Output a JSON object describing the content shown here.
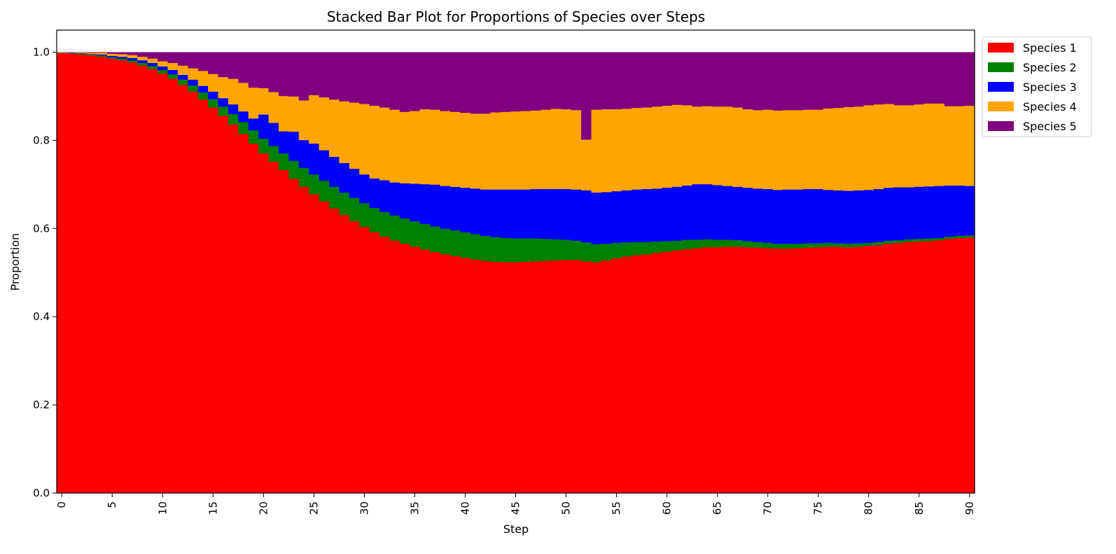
{
  "chart_data": {
    "type": "bar",
    "stacked": true,
    "title": "Stacked Bar Plot for Proportions of Species over Steps",
    "xlabel": "Step",
    "ylabel": "Proportion",
    "xlim": [
      -0.5,
      90.5
    ],
    "ylim": [
      0,
      1.05
    ],
    "x_ticks": [
      0,
      5,
      10,
      15,
      20,
      25,
      30,
      35,
      40,
      45,
      50,
      55,
      60,
      65,
      70,
      75,
      80,
      85,
      90
    ],
    "y_ticks": [
      0.0,
      0.2,
      0.4,
      0.6,
      0.8,
      1.0
    ],
    "y_tick_labels": [
      "0.0",
      "0.2",
      "0.4",
      "0.6",
      "0.8",
      "1.0"
    ],
    "grid": false,
    "legend_position": "outside-top-right",
    "x": [
      0,
      1,
      2,
      3,
      4,
      5,
      6,
      7,
      8,
      9,
      10,
      11,
      12,
      13,
      14,
      15,
      16,
      17,
      18,
      19,
      20,
      21,
      22,
      23,
      24,
      25,
      26,
      27,
      28,
      29,
      30,
      31,
      32,
      33,
      34,
      35,
      36,
      37,
      38,
      39,
      40,
      41,
      42,
      43,
      44,
      45,
      46,
      47,
      48,
      49,
      50,
      51,
      52,
      53,
      54,
      55,
      56,
      57,
      58,
      59,
      60,
      61,
      62,
      63,
      64,
      65,
      66,
      67,
      68,
      69,
      70,
      71,
      72,
      73,
      74,
      75,
      76,
      77,
      78,
      79,
      80,
      81,
      82,
      83,
      84,
      85,
      86,
      87,
      88,
      89,
      90
    ],
    "series": [
      {
        "name": "Species 1",
        "color": "#ff0000",
        "values": [
          0.998,
          0.997,
          0.995,
          0.993,
          0.99,
          0.986,
          0.982,
          0.977,
          0.97,
          0.962,
          0.952,
          0.94,
          0.926,
          0.911,
          0.893,
          0.875,
          0.856,
          0.836,
          0.815,
          0.793,
          0.771,
          0.752,
          0.733,
          0.713,
          0.695,
          0.678,
          0.662,
          0.646,
          0.631,
          0.617,
          0.604,
          0.592,
          0.582,
          0.573,
          0.566,
          0.559,
          0.553,
          0.547,
          0.542,
          0.538,
          0.534,
          0.53,
          0.527,
          0.525,
          0.524,
          0.524,
          0.525,
          0.526,
          0.527,
          0.528,
          0.529,
          0.529,
          0.526,
          0.524,
          0.528,
          0.533,
          0.537,
          0.54,
          0.542,
          0.545,
          0.548,
          0.551,
          0.554,
          0.556,
          0.558,
          0.558,
          0.559,
          0.559,
          0.558,
          0.557,
          0.556,
          0.555,
          0.555,
          0.556,
          0.557,
          0.558,
          0.559,
          0.559,
          0.558,
          0.559,
          0.561,
          0.563,
          0.566,
          0.568,
          0.57,
          0.571,
          0.572,
          0.574,
          0.577,
          0.579,
          0.58
        ]
      },
      {
        "name": "Species 2",
        "color": "#008000",
        "values": [
          0.001,
          0.001,
          0.002,
          0.002,
          0.003,
          0.003,
          0.004,
          0.005,
          0.006,
          0.007,
          0.008,
          0.01,
          0.012,
          0.014,
          0.016,
          0.019,
          0.021,
          0.024,
          0.027,
          0.03,
          0.033,
          0.036,
          0.038,
          0.041,
          0.043,
          0.045,
          0.047,
          0.049,
          0.051,
          0.053,
          0.054,
          0.055,
          0.056,
          0.057,
          0.057,
          0.058,
          0.058,
          0.058,
          0.058,
          0.058,
          0.058,
          0.058,
          0.057,
          0.056,
          0.055,
          0.054,
          0.053,
          0.052,
          0.05,
          0.048,
          0.046,
          0.044,
          0.043,
          0.041,
          0.038,
          0.035,
          0.032,
          0.03,
          0.028,
          0.026,
          0.024,
          0.022,
          0.021,
          0.019,
          0.018,
          0.017,
          0.016,
          0.015,
          0.014,
          0.013,
          0.012,
          0.011,
          0.011,
          0.01,
          0.01,
          0.009,
          0.009,
          0.008,
          0.008,
          0.008,
          0.007,
          0.007,
          0.007,
          0.006,
          0.006,
          0.006,
          0.006,
          0.005,
          0.005,
          0.005,
          0.005
        ]
      },
      {
        "name": "Species 3",
        "color": "#0000ff",
        "values": [
          0.0,
          0.001,
          0.001,
          0.001,
          0.002,
          0.003,
          0.004,
          0.005,
          0.006,
          0.007,
          0.008,
          0.01,
          0.011,
          0.013,
          0.015,
          0.017,
          0.019,
          0.022,
          0.024,
          0.027,
          0.055,
          0.052,
          0.05,
          0.066,
          0.063,
          0.07,
          0.069,
          0.068,
          0.067,
          0.066,
          0.065,
          0.067,
          0.072,
          0.075,
          0.08,
          0.085,
          0.09,
          0.095,
          0.097,
          0.099,
          0.101,
          0.103,
          0.105,
          0.108,
          0.11,
          0.111,
          0.111,
          0.112,
          0.113,
          0.114,
          0.115,
          0.116,
          0.118,
          0.117,
          0.117,
          0.117,
          0.118,
          0.119,
          0.12,
          0.12,
          0.121,
          0.122,
          0.123,
          0.126,
          0.125,
          0.124,
          0.122,
          0.121,
          0.121,
          0.121,
          0.122,
          0.122,
          0.123,
          0.123,
          0.123,
          0.123,
          0.12,
          0.12,
          0.12,
          0.12,
          0.12,
          0.12,
          0.12,
          0.12,
          0.118,
          0.118,
          0.118,
          0.118,
          0.116,
          0.114,
          0.112
        ]
      },
      {
        "name": "Species 4",
        "color": "#ffa500",
        "values": [
          0.001,
          0.001,
          0.002,
          0.003,
          0.004,
          0.005,
          0.006,
          0.007,
          0.008,
          0.01,
          0.012,
          0.016,
          0.021,
          0.026,
          0.034,
          0.04,
          0.048,
          0.058,
          0.065,
          0.07,
          0.06,
          0.07,
          0.08,
          0.08,
          0.09,
          0.11,
          0.12,
          0.13,
          0.14,
          0.15,
          0.16,
          0.165,
          0.165,
          0.165,
          0.162,
          0.165,
          0.17,
          0.17,
          0.17,
          0.17,
          0.17,
          0.17,
          0.172,
          0.175,
          0.176,
          0.177,
          0.178,
          0.178,
          0.18,
          0.182,
          0.181,
          0.18,
          0.115,
          0.188,
          0.188,
          0.186,
          0.185,
          0.185,
          0.185,
          0.186,
          0.186,
          0.186,
          0.182,
          0.176,
          0.177,
          0.178,
          0.18,
          0.18,
          0.178,
          0.178,
          0.18,
          0.18,
          0.18,
          0.18,
          0.18,
          0.18,
          0.185,
          0.187,
          0.19,
          0.19,
          0.192,
          0.192,
          0.19,
          0.186,
          0.186,
          0.187,
          0.188,
          0.187,
          0.18,
          0.18,
          0.182
        ]
      },
      {
        "name": "Species 5",
        "color": "#800080",
        "values": [
          0.0,
          0.0,
          0.0,
          0.001,
          0.001,
          0.003,
          0.004,
          0.006,
          0.01,
          0.014,
          0.02,
          0.024,
          0.03,
          0.036,
          0.042,
          0.049,
          0.056,
          0.06,
          0.069,
          0.08,
          0.081,
          0.09,
          0.099,
          0.1,
          0.109,
          0.097,
          0.102,
          0.107,
          0.111,
          0.114,
          0.117,
          0.121,
          0.125,
          0.13,
          0.135,
          0.133,
          0.129,
          0.13,
          0.133,
          0.135,
          0.137,
          0.139,
          0.139,
          0.136,
          0.135,
          0.134,
          0.133,
          0.132,
          0.13,
          0.128,
          0.129,
          0.131,
          0.198,
          0.13,
          0.129,
          0.129,
          0.128,
          0.126,
          0.125,
          0.123,
          0.121,
          0.119,
          0.12,
          0.123,
          0.122,
          0.123,
          0.123,
          0.125,
          0.129,
          0.131,
          0.13,
          0.132,
          0.131,
          0.131,
          0.13,
          0.13,
          0.127,
          0.126,
          0.124,
          0.123,
          0.12,
          0.118,
          0.117,
          0.12,
          0.12,
          0.118,
          0.116,
          0.116,
          0.122,
          0.122,
          0.121
        ]
      }
    ]
  }
}
